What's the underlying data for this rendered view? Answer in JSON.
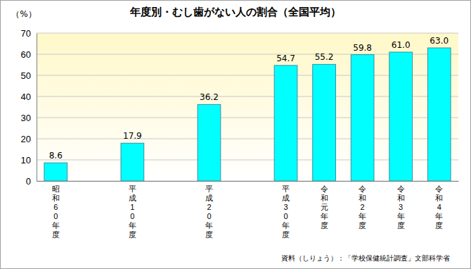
{
  "chart_data": {
    "type": "bar",
    "title": "年度別・むし歯がない人の割合（全国平均）",
    "ylabel": "（%）",
    "annotations": [
      "資料（しりょう）：「学校保健統計調査」文部科学省"
    ],
    "categories": [
      "昭和60年度",
      null,
      "平成10年度",
      null,
      "平成20年度",
      null,
      "平成30年度",
      "令和元年度",
      "令和2年度",
      "令和3年度",
      "令和4年度"
    ],
    "values": [
      8.6,
      null,
      17.9,
      null,
      36.2,
      null,
      54.7,
      55.2,
      59.8,
      61.0,
      63.0
    ],
    "value_labels": [
      "8.6",
      null,
      "17.9",
      null,
      "36.2",
      null,
      "54.7",
      "55.2",
      "59.8",
      "61.0",
      "63.0"
    ],
    "color": "#00ffff",
    "ylim": [
      0,
      70
    ],
    "yticks": [
      0,
      10,
      20,
      30,
      40,
      50,
      60,
      70
    ],
    "grid": true,
    "data_labels": true
  }
}
